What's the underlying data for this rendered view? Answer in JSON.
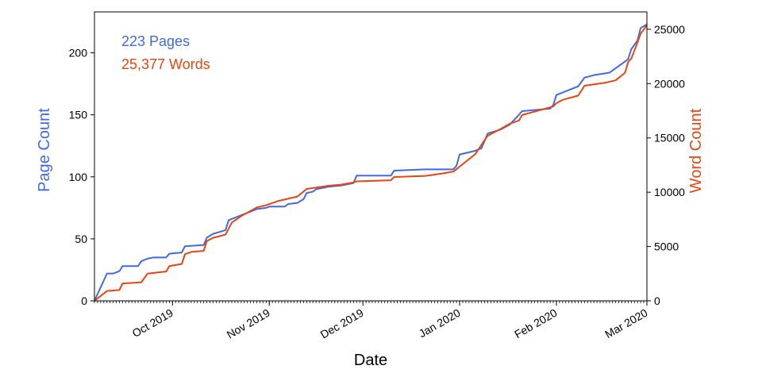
{
  "chart_data": {
    "type": "line",
    "xlabel": "Date",
    "ylabel_left": "Page Count",
    "ylabel_right": "Word Count",
    "x_range": [
      "2019-09-06",
      "2020-03-01"
    ],
    "ylim_left": [
      0,
      233
    ],
    "ylim_right": [
      0,
      26600
    ],
    "yticks_left": [
      0,
      50,
      100,
      150,
      200
    ],
    "yticks_right": [
      0,
      5000,
      10000,
      15000,
      20000,
      25000
    ],
    "month_ticks": [
      {
        "date": "2019-10-01",
        "label": "Oct 2019"
      },
      {
        "date": "2019-11-01",
        "label": "Nov 2019"
      },
      {
        "date": "2019-12-01",
        "label": "Dec 2019"
      },
      {
        "date": "2020-01-01",
        "label": "Jan 2020"
      },
      {
        "date": "2020-02-01",
        "label": "Feb 2020"
      },
      {
        "date": "2020-03-01",
        "label": "Mar 2020"
      }
    ],
    "grid": false,
    "legend_placement": "top-left",
    "annotations": {
      "pages": "223 Pages",
      "words": "25,377 Words"
    },
    "series": [
      {
        "name": "Pages",
        "axis": "left",
        "color": "#4169E1",
        "points": [
          [
            "2019-09-06",
            0
          ],
          [
            "2019-09-10",
            22
          ],
          [
            "2019-09-12",
            22
          ],
          [
            "2019-09-14",
            24
          ],
          [
            "2019-09-15",
            28
          ],
          [
            "2019-09-20",
            28
          ],
          [
            "2019-09-21",
            32
          ],
          [
            "2019-09-23",
            34
          ],
          [
            "2019-09-25",
            35
          ],
          [
            "2019-09-29",
            35
          ],
          [
            "2019-09-30",
            38
          ],
          [
            "2019-10-04",
            39
          ],
          [
            "2019-10-05",
            44
          ],
          [
            "2019-10-11",
            45
          ],
          [
            "2019-10-12",
            51
          ],
          [
            "2019-10-14",
            54
          ],
          [
            "2019-10-18",
            57
          ],
          [
            "2019-10-19",
            65
          ],
          [
            "2019-10-21",
            67
          ],
          [
            "2019-10-23",
            69
          ],
          [
            "2019-10-26",
            72
          ],
          [
            "2019-10-28",
            74
          ],
          [
            "2019-10-31",
            75
          ],
          [
            "2019-11-01",
            76
          ],
          [
            "2019-11-06",
            76
          ],
          [
            "2019-11-07",
            78
          ],
          [
            "2019-11-10",
            79
          ],
          [
            "2019-11-12",
            82
          ],
          [
            "2019-11-13",
            87
          ],
          [
            "2019-11-15",
            88
          ],
          [
            "2019-11-16",
            90
          ],
          [
            "2019-11-20",
            92
          ],
          [
            "2019-11-24",
            93
          ],
          [
            "2019-11-28",
            95
          ],
          [
            "2019-11-29",
            101
          ],
          [
            "2019-12-10",
            101
          ],
          [
            "2019-12-11",
            105
          ],
          [
            "2019-12-21",
            106
          ],
          [
            "2019-12-30",
            106
          ],
          [
            "2019-12-31",
            109
          ],
          [
            "2020-01-01",
            118
          ],
          [
            "2020-01-06",
            121
          ],
          [
            "2020-01-08",
            123
          ],
          [
            "2020-01-09",
            129
          ],
          [
            "2020-01-10",
            135
          ],
          [
            "2020-01-14",
            138
          ],
          [
            "2020-01-17",
            142
          ],
          [
            "2020-01-20",
            150
          ],
          [
            "2020-01-21",
            153
          ],
          [
            "2020-01-30",
            155
          ],
          [
            "2020-01-31",
            158
          ],
          [
            "2020-02-01",
            166
          ],
          [
            "2020-02-03",
            168
          ],
          [
            "2020-02-08",
            173
          ],
          [
            "2020-02-10",
            180
          ],
          [
            "2020-02-13",
            182
          ],
          [
            "2020-02-18",
            184
          ],
          [
            "2020-02-23",
            193
          ],
          [
            "2020-02-24",
            195
          ],
          [
            "2020-02-25",
            203
          ],
          [
            "2020-02-27",
            210
          ],
          [
            "2020-02-28",
            220
          ],
          [
            "2020-03-01",
            223
          ]
        ]
      },
      {
        "name": "Words",
        "axis": "right",
        "color": "#E8450F",
        "points": [
          [
            "2019-09-06",
            0
          ],
          [
            "2019-09-10",
            900
          ],
          [
            "2019-09-14",
            1000
          ],
          [
            "2019-09-15",
            1600
          ],
          [
            "2019-09-21",
            1700
          ],
          [
            "2019-09-23",
            2500
          ],
          [
            "2019-09-29",
            2700
          ],
          [
            "2019-09-30",
            3200
          ],
          [
            "2019-10-04",
            3400
          ],
          [
            "2019-10-05",
            4300
          ],
          [
            "2019-10-07",
            4500
          ],
          [
            "2019-10-11",
            4600
          ],
          [
            "2019-10-12",
            5500
          ],
          [
            "2019-10-14",
            5800
          ],
          [
            "2019-10-18",
            6100
          ],
          [
            "2019-10-20",
            7200
          ],
          [
            "2019-10-23",
            7800
          ],
          [
            "2019-10-28",
            8600
          ],
          [
            "2019-10-31",
            8800
          ],
          [
            "2019-11-04",
            9200
          ],
          [
            "2019-11-10",
            9600
          ],
          [
            "2019-11-13",
            10300
          ],
          [
            "2019-11-20",
            10600
          ],
          [
            "2019-11-24",
            10700
          ],
          [
            "2019-11-28",
            10900
          ],
          [
            "2019-11-29",
            11000
          ],
          [
            "2019-12-10",
            11100
          ],
          [
            "2019-12-11",
            11400
          ],
          [
            "2019-12-21",
            11500
          ],
          [
            "2019-12-26",
            11700
          ],
          [
            "2019-12-30",
            11900
          ],
          [
            "2020-01-06",
            13500
          ],
          [
            "2020-01-09",
            14800
          ],
          [
            "2020-01-10",
            15200
          ],
          [
            "2020-01-14",
            15800
          ],
          [
            "2020-01-17",
            16300
          ],
          [
            "2020-01-20",
            16600
          ],
          [
            "2020-01-21",
            17100
          ],
          [
            "2020-01-31",
            17900
          ],
          [
            "2020-02-01",
            18200
          ],
          [
            "2020-02-03",
            18500
          ],
          [
            "2020-02-08",
            18900
          ],
          [
            "2020-02-10",
            19800
          ],
          [
            "2020-02-17",
            20100
          ],
          [
            "2020-02-20",
            20300
          ],
          [
            "2020-02-23",
            21000
          ],
          [
            "2020-02-24",
            22000
          ],
          [
            "2020-02-25",
            22300
          ],
          [
            "2020-02-27",
            23800
          ],
          [
            "2020-02-28",
            24600
          ],
          [
            "2020-03-01",
            25377
          ]
        ]
      }
    ]
  }
}
